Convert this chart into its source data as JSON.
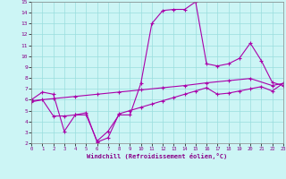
{
  "xlabel": "Windchill (Refroidissement éolien,°C)",
  "xlim": [
    0,
    23
  ],
  "ylim": [
    2,
    15
  ],
  "xticks": [
    0,
    1,
    2,
    3,
    4,
    5,
    6,
    7,
    8,
    9,
    10,
    11,
    12,
    13,
    14,
    15,
    16,
    17,
    18,
    19,
    20,
    21,
    22,
    23
  ],
  "yticks": [
    2,
    3,
    4,
    5,
    6,
    7,
    8,
    9,
    10,
    11,
    12,
    13,
    14,
    15
  ],
  "line_color": "#aa00aa",
  "bg_color": "#ccf5f5",
  "grid_color": "#99dddd",
  "line1_x": [
    0,
    1,
    2,
    3,
    4,
    5,
    6,
    7,
    8,
    9,
    10,
    11,
    12,
    13,
    14,
    15,
    16,
    17,
    18,
    19,
    20,
    21,
    22,
    23
  ],
  "line1_y": [
    6.0,
    6.7,
    6.5,
    3.1,
    4.6,
    4.6,
    2.2,
    3.1,
    4.6,
    4.6,
    7.5,
    13.0,
    14.2,
    14.3,
    14.3,
    15.0,
    9.3,
    9.1,
    9.3,
    9.8,
    11.2,
    9.6,
    7.6,
    7.3
  ],
  "line2_x": [
    0,
    2,
    4,
    6,
    8,
    10,
    12,
    14,
    16,
    18,
    20,
    22,
    23
  ],
  "line2_y": [
    5.9,
    6.1,
    6.3,
    6.5,
    6.7,
    6.9,
    7.1,
    7.3,
    7.55,
    7.75,
    7.95,
    7.3,
    7.5
  ],
  "line3_x": [
    0,
    1,
    2,
    3,
    4,
    5,
    6,
    7,
    8,
    9,
    10,
    11,
    12,
    13,
    14,
    15,
    16,
    17,
    18,
    19,
    20,
    21,
    22,
    23
  ],
  "line3_y": [
    5.8,
    6.0,
    4.5,
    4.5,
    4.6,
    4.8,
    2.1,
    2.5,
    4.7,
    5.0,
    5.3,
    5.6,
    5.9,
    6.2,
    6.5,
    6.8,
    7.1,
    6.5,
    6.6,
    6.8,
    7.0,
    7.2,
    6.8,
    7.5
  ]
}
